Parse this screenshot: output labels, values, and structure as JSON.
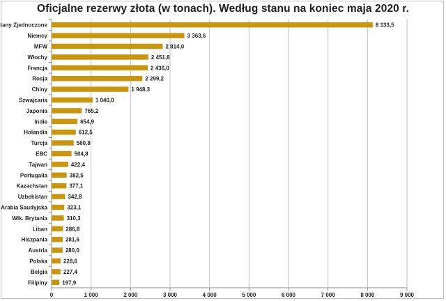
{
  "chart_data": {
    "type": "bar",
    "orientation": "horizontal",
    "title": "Oficjalne rezerwy złota (w tonach). Według stanu na koniec maja 2020 r.",
    "xlabel": "",
    "ylabel": "",
    "xlim": [
      0,
      9000
    ],
    "x_ticks": [
      0,
      1000,
      2000,
      3000,
      4000,
      5000,
      6000,
      7000,
      8000,
      9000
    ],
    "x_tick_labels": [
      "0",
      "1 000",
      "2 000",
      "3 000",
      "4 000",
      "5 000",
      "6 000",
      "7 000",
      "8 000",
      "9 000"
    ],
    "grid": "vertical",
    "legend": "none",
    "bar_color": "#c9960f",
    "categories": [
      "Stany Zjednoczone",
      "Niemcy",
      "MFW",
      "Włochy",
      "Francja",
      "Rosja",
      "Chiny",
      "Szwajcaria",
      "Japonia",
      "Indie",
      "Holandia",
      "Turcja",
      "EBC",
      "Tajwan",
      "Portugalia",
      "Kazachstan",
      "Uzbekistan",
      "Arabia Saudyjska",
      "Wlk. Brytania",
      "Liban",
      "Hiszpania",
      "Austria",
      "Polska",
      "Belgia",
      "Filipiny"
    ],
    "values": [
      8133.5,
      3363.6,
      2814.0,
      2451.8,
      2436.0,
      2299.2,
      1948.3,
      1040.0,
      765.2,
      654.9,
      612.5,
      560.8,
      504.8,
      422.4,
      382.5,
      377.1,
      342.8,
      323.1,
      310.3,
      286.8,
      281.6,
      280.0,
      228.6,
      227.4,
      197.9
    ],
    "value_labels": [
      "8 133,5",
      "3 363,6",
      "2 814,0",
      "2 451,8",
      "2 436,0",
      "2 299,2",
      "1 948,3",
      "1 040,0",
      "765,2",
      "654,9",
      "612,5",
      "560,8",
      "504,8",
      "422,4",
      "382,5",
      "377,1",
      "342,8",
      "323,1",
      "310,3",
      "286,8",
      "281,6",
      "280,0",
      "228,6",
      "227,4",
      "197,9"
    ]
  }
}
